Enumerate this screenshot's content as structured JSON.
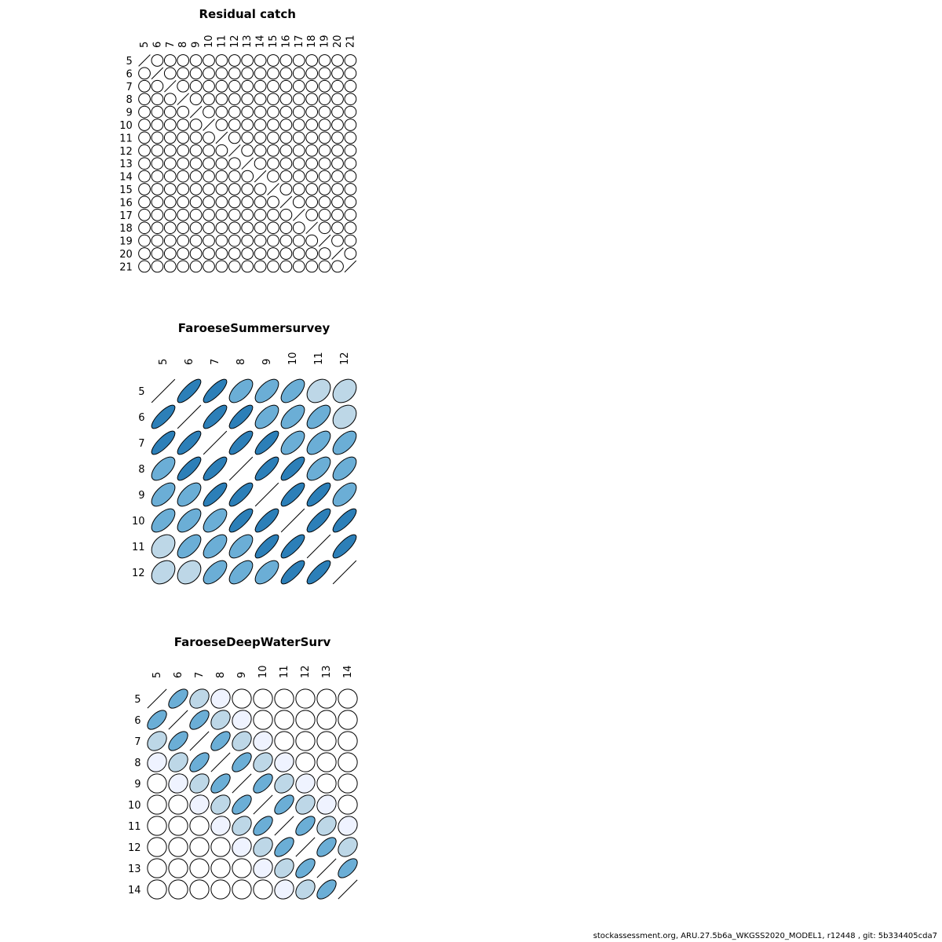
{
  "footer": "stockassessment.org, ARU.27.5b6a_WKGSS2020_MODEL1, r12448 , git: 5b334405cda7",
  "colors": {
    "dark": "#2c7fb8",
    "mid": "#6baed6",
    "light": "#bdd7e7",
    "pale": "#eff3ff",
    "none": "#ffffff",
    "stroke": "#000000"
  },
  "chart_data": [
    {
      "type": "heatmap",
      "title": "Residual catch",
      "labels": [
        "5",
        "6",
        "7",
        "8",
        "9",
        "10",
        "11",
        "12",
        "13",
        "14",
        "15",
        "16",
        "17",
        "18",
        "19",
        "20",
        "21"
      ],
      "matrix": [
        [
          1,
          0,
          0,
          0,
          0,
          0,
          0,
          0,
          0,
          0,
          0,
          0,
          0,
          0,
          0,
          0,
          0
        ],
        [
          0,
          1,
          0,
          0,
          0,
          0,
          0,
          0,
          0,
          0,
          0,
          0,
          0,
          0,
          0,
          0,
          0
        ],
        [
          0,
          0,
          1,
          0,
          0,
          0,
          0,
          0,
          0,
          0,
          0,
          0,
          0,
          0,
          0,
          0,
          0
        ],
        [
          0,
          0,
          0,
          1,
          0,
          0,
          0,
          0,
          0,
          0,
          0,
          0,
          0,
          0,
          0,
          0,
          0
        ],
        [
          0,
          0,
          0,
          0,
          1,
          0,
          0,
          0,
          0,
          0,
          0,
          0,
          0,
          0,
          0,
          0,
          0
        ],
        [
          0,
          0,
          0,
          0,
          0,
          1,
          0,
          0,
          0,
          0,
          0,
          0,
          0,
          0,
          0,
          0,
          0
        ],
        [
          0,
          0,
          0,
          0,
          0,
          0,
          1,
          0,
          0,
          0,
          0,
          0,
          0,
          0,
          0,
          0,
          0
        ],
        [
          0,
          0,
          0,
          0,
          0,
          0,
          0,
          1,
          0,
          0,
          0,
          0,
          0,
          0,
          0,
          0,
          0
        ],
        [
          0,
          0,
          0,
          0,
          0,
          0,
          0,
          0,
          1,
          0,
          0,
          0,
          0,
          0,
          0,
          0,
          0
        ],
        [
          0,
          0,
          0,
          0,
          0,
          0,
          0,
          0,
          0,
          1,
          0,
          0,
          0,
          0,
          0,
          0,
          0
        ],
        [
          0,
          0,
          0,
          0,
          0,
          0,
          0,
          0,
          0,
          0,
          1,
          0,
          0,
          0,
          0,
          0,
          0
        ],
        [
          0,
          0,
          0,
          0,
          0,
          0,
          0,
          0,
          0,
          0,
          0,
          1,
          0,
          0,
          0,
          0,
          0
        ],
        [
          0,
          0,
          0,
          0,
          0,
          0,
          0,
          0,
          0,
          0,
          0,
          0,
          1,
          0,
          0,
          0,
          0
        ],
        [
          0,
          0,
          0,
          0,
          0,
          0,
          0,
          0,
          0,
          0,
          0,
          0,
          0,
          1,
          0,
          0,
          0
        ],
        [
          0,
          0,
          0,
          0,
          0,
          0,
          0,
          0,
          0,
          0,
          0,
          0,
          0,
          0,
          1,
          0,
          0
        ],
        [
          0,
          0,
          0,
          0,
          0,
          0,
          0,
          0,
          0,
          0,
          0,
          0,
          0,
          0,
          0,
          1,
          0
        ],
        [
          0,
          0,
          0,
          0,
          0,
          0,
          0,
          0,
          0,
          0,
          0,
          0,
          0,
          0,
          0,
          0,
          1
        ]
      ]
    },
    {
      "type": "heatmap",
      "title": "FaroeseSummersurvey",
      "labels": [
        "5",
        "6",
        "7",
        "8",
        "9",
        "10",
        "11",
        "12"
      ],
      "matrix": [
        [
          1.0,
          0.8,
          0.8,
          0.6,
          0.6,
          0.6,
          0.3,
          0.3
        ],
        [
          0.8,
          1.0,
          0.8,
          0.8,
          0.6,
          0.6,
          0.6,
          0.3
        ],
        [
          0.8,
          0.8,
          1.0,
          0.8,
          0.8,
          0.6,
          0.6,
          0.6
        ],
        [
          0.6,
          0.8,
          0.8,
          1.0,
          0.8,
          0.8,
          0.6,
          0.6
        ],
        [
          0.6,
          0.6,
          0.8,
          0.8,
          1.0,
          0.8,
          0.8,
          0.6
        ],
        [
          0.6,
          0.6,
          0.6,
          0.8,
          0.8,
          1.0,
          0.8,
          0.8
        ],
        [
          0.3,
          0.6,
          0.6,
          0.6,
          0.8,
          0.8,
          1.0,
          0.8
        ],
        [
          0.3,
          0.3,
          0.6,
          0.6,
          0.6,
          0.8,
          0.8,
          1.0
        ]
      ]
    },
    {
      "type": "heatmap",
      "title": "FaroeseDeepWaterSurv",
      "labels": [
        "5",
        "6",
        "7",
        "8",
        "9",
        "10",
        "11",
        "12",
        "13",
        "14"
      ],
      "matrix": [
        [
          1.0,
          0.6,
          0.3,
          0.12,
          0,
          0,
          0,
          0,
          0,
          0
        ],
        [
          0.6,
          1.0,
          0.6,
          0.3,
          0.12,
          0,
          0,
          0,
          0,
          0
        ],
        [
          0.3,
          0.6,
          1.0,
          0.6,
          0.3,
          0.12,
          0,
          0,
          0,
          0
        ],
        [
          0.12,
          0.3,
          0.6,
          1.0,
          0.6,
          0.3,
          0.12,
          0,
          0,
          0
        ],
        [
          0,
          0.12,
          0.3,
          0.6,
          1.0,
          0.6,
          0.3,
          0.12,
          0,
          0
        ],
        [
          0,
          0,
          0.12,
          0.3,
          0.6,
          1.0,
          0.6,
          0.3,
          0.12,
          0
        ],
        [
          0,
          0,
          0,
          0.12,
          0.3,
          0.6,
          1.0,
          0.6,
          0.3,
          0.12
        ],
        [
          0,
          0,
          0,
          0,
          0.12,
          0.3,
          0.6,
          1.0,
          0.6,
          0.3
        ],
        [
          0,
          0,
          0,
          0,
          0,
          0.12,
          0.3,
          0.6,
          1.0,
          0.6
        ],
        [
          0,
          0,
          0,
          0,
          0,
          0,
          0.12,
          0.3,
          0.6,
          1.0
        ]
      ]
    }
  ]
}
